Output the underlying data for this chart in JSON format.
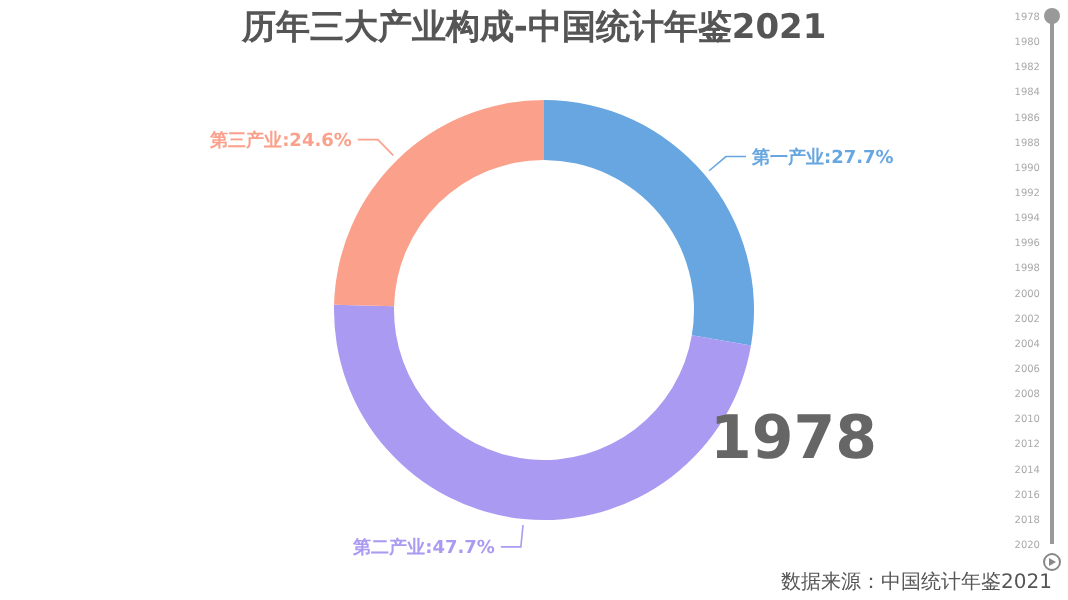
{
  "chart_data": {
    "type": "donut",
    "title": "历年三大产业构成-中国统计年鉴2021",
    "categories": [
      "第一产业",
      "第二产业",
      "第三产业"
    ],
    "values": [
      27.7,
      47.7,
      24.6
    ],
    "value_labels": [
      "27.7%",
      "47.7%",
      "24.6%"
    ],
    "colors": [
      "#67a6e0",
      "#ab9af2",
      "#fba18b"
    ],
    "annotations": [
      "1978",
      "数据来源：中国统计年鉴2021",
      "1978",
      "1980",
      "1982",
      "1984",
      "1986",
      "1988",
      "1990",
      "1992",
      "1994",
      "1996",
      "1998",
      "2000",
      "2002",
      "2004",
      "2006",
      "2008",
      "2010",
      "2012",
      "2014",
      "2016",
      "2018",
      "2020"
    ],
    "legend": false
  }
}
